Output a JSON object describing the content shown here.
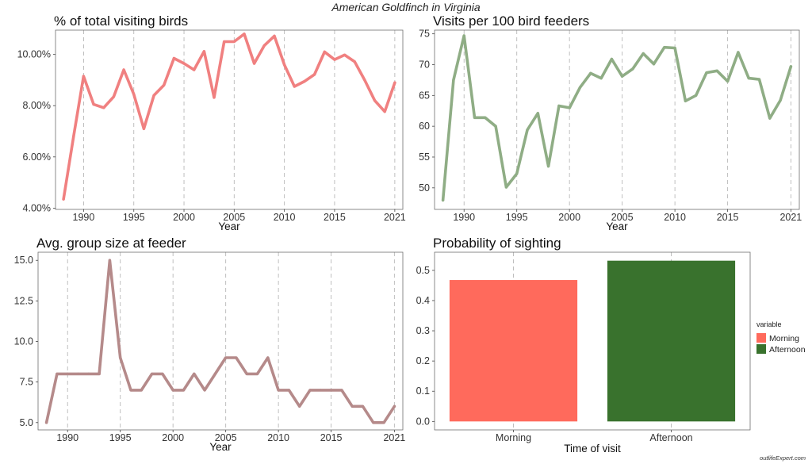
{
  "figure": {
    "title": "American Goldfinch in Virginia",
    "watermark": "outlifeExpert.com"
  },
  "chart_data": [
    {
      "id": "pct-visiting",
      "type": "line",
      "title": "% of total visiting birds",
      "xlabel": "Year",
      "ylabel": "",
      "x_ticks": [
        1990,
        1995,
        2000,
        2005,
        2010,
        2015,
        2021
      ],
      "y_ticks": [
        4,
        6,
        8,
        10
      ],
      "y_tick_labels": [
        "4.00%",
        "6.00%",
        "8.00%",
        "10.00%"
      ],
      "xlim": [
        1987.2,
        2021.8
      ],
      "ylim": [
        3.95,
        10.95
      ],
      "grid": "vertical-dashed",
      "color": "#f08080",
      "series": [
        {
          "x": [
            1988,
            1989,
            1990,
            1991,
            1992,
            1993,
            1994,
            1995,
            1996,
            1997,
            1998,
            1999,
            2000,
            2001,
            2002,
            2003,
            2004,
            2005,
            2006,
            2007,
            2008,
            2009,
            2010,
            2011,
            2012,
            2013,
            2014,
            2015,
            2016,
            2017,
            2018,
            2019,
            2020,
            2021
          ],
          "values": [
            4.35,
            6.8,
            9.15,
            8.05,
            7.92,
            8.35,
            9.4,
            8.45,
            7.1,
            8.4,
            8.8,
            9.85,
            9.65,
            9.4,
            10.12,
            8.32,
            10.5,
            10.5,
            10.8,
            9.65,
            10.35,
            10.72,
            9.6,
            8.75,
            8.95,
            9.22,
            10.1,
            9.8,
            9.98,
            9.72,
            9.0,
            8.2,
            7.77,
            8.9
          ]
        }
      ]
    },
    {
      "id": "visits-per-100",
      "type": "line",
      "title": "Visits per 100 bird feeders",
      "xlabel": "Year",
      "ylabel": "",
      "x_ticks": [
        1990,
        1995,
        2000,
        2005,
        2010,
        2015,
        2021
      ],
      "y_ticks": [
        50,
        55,
        60,
        65,
        70,
        75
      ],
      "y_tick_labels": [
        "50",
        "55",
        "60",
        "65",
        "70",
        "75"
      ],
      "xlim": [
        1987.2,
        2021.8
      ],
      "ylim": [
        46.5,
        75.6
      ],
      "grid": "vertical-dashed",
      "color": "#8fad85",
      "series": [
        {
          "x": [
            1988,
            1989,
            1990,
            1991,
            1992,
            1993,
            1994,
            1995,
            1996,
            1997,
            1998,
            1999,
            2000,
            2001,
            2002,
            2003,
            2004,
            2005,
            2006,
            2007,
            2008,
            2009,
            2010,
            2011,
            2012,
            2013,
            2014,
            2015,
            2016,
            2017,
            2018,
            2019,
            2020,
            2021
          ],
          "values": [
            48.0,
            67.5,
            74.7,
            61.4,
            61.4,
            60.0,
            50.1,
            52.3,
            59.4,
            62.1,
            53.5,
            63.3,
            63.0,
            66.3,
            68.6,
            67.8,
            70.9,
            68.1,
            69.3,
            71.8,
            70.1,
            72.8,
            72.7,
            64.1,
            65.0,
            68.7,
            69.0,
            67.3,
            72.0,
            67.8,
            67.6,
            61.3,
            64.2,
            69.7
          ]
        }
      ]
    },
    {
      "id": "group-size",
      "type": "line",
      "title": "Avg. group size at feeder",
      "xlabel": "Year",
      "ylabel": "",
      "x_ticks": [
        1990,
        1995,
        2000,
        2005,
        2010,
        2015,
        2021
      ],
      "y_ticks": [
        5,
        7.5,
        10,
        12.5,
        15
      ],
      "y_tick_labels": [
        "5.0",
        "7.5",
        "10.0",
        "12.5",
        "15.0"
      ],
      "xlim": [
        1987.2,
        2021.8
      ],
      "ylim": [
        4.55,
        15.5
      ],
      "grid": "vertical-dashed",
      "color": "#b58a8a",
      "series": [
        {
          "x": [
            1988,
            1989,
            1990,
            1991,
            1992,
            1993,
            1994,
            1995,
            1996,
            1997,
            1998,
            1999,
            2000,
            2001,
            2002,
            2003,
            2004,
            2005,
            2006,
            2007,
            2008,
            2009,
            2010,
            2011,
            2012,
            2013,
            2014,
            2015,
            2016,
            2017,
            2018,
            2019,
            2020,
            2021
          ],
          "values": [
            5,
            8,
            8,
            8,
            8,
            8,
            15,
            9,
            7,
            7,
            8,
            8,
            7,
            7,
            8,
            7,
            8,
            9,
            9,
            8,
            8,
            9,
            7,
            7,
            6,
            7,
            7,
            7,
            7,
            6,
            6,
            5,
            5,
            6
          ]
        }
      ]
    },
    {
      "id": "probability",
      "type": "bar",
      "title": "Probability of sighting",
      "xlabel": "Time of visit",
      "ylabel": "",
      "categories": [
        "Morning",
        "Afternoon"
      ],
      "values": [
        0.468,
        0.532
      ],
      "colors": [
        "#ff6a5c",
        "#39722d"
      ],
      "y_ticks": [
        0,
        0.1,
        0.2,
        0.3,
        0.4,
        0.5
      ],
      "y_tick_labels": [
        "0.0",
        "0.1",
        "0.2",
        "0.3",
        "0.4",
        "0.5"
      ],
      "ylim": [
        -0.028,
        0.56
      ],
      "grid": "vertical-dashed",
      "legend": {
        "title": "variable",
        "placement": "right",
        "entries": [
          "Morning",
          "Afternoon"
        ]
      }
    }
  ]
}
